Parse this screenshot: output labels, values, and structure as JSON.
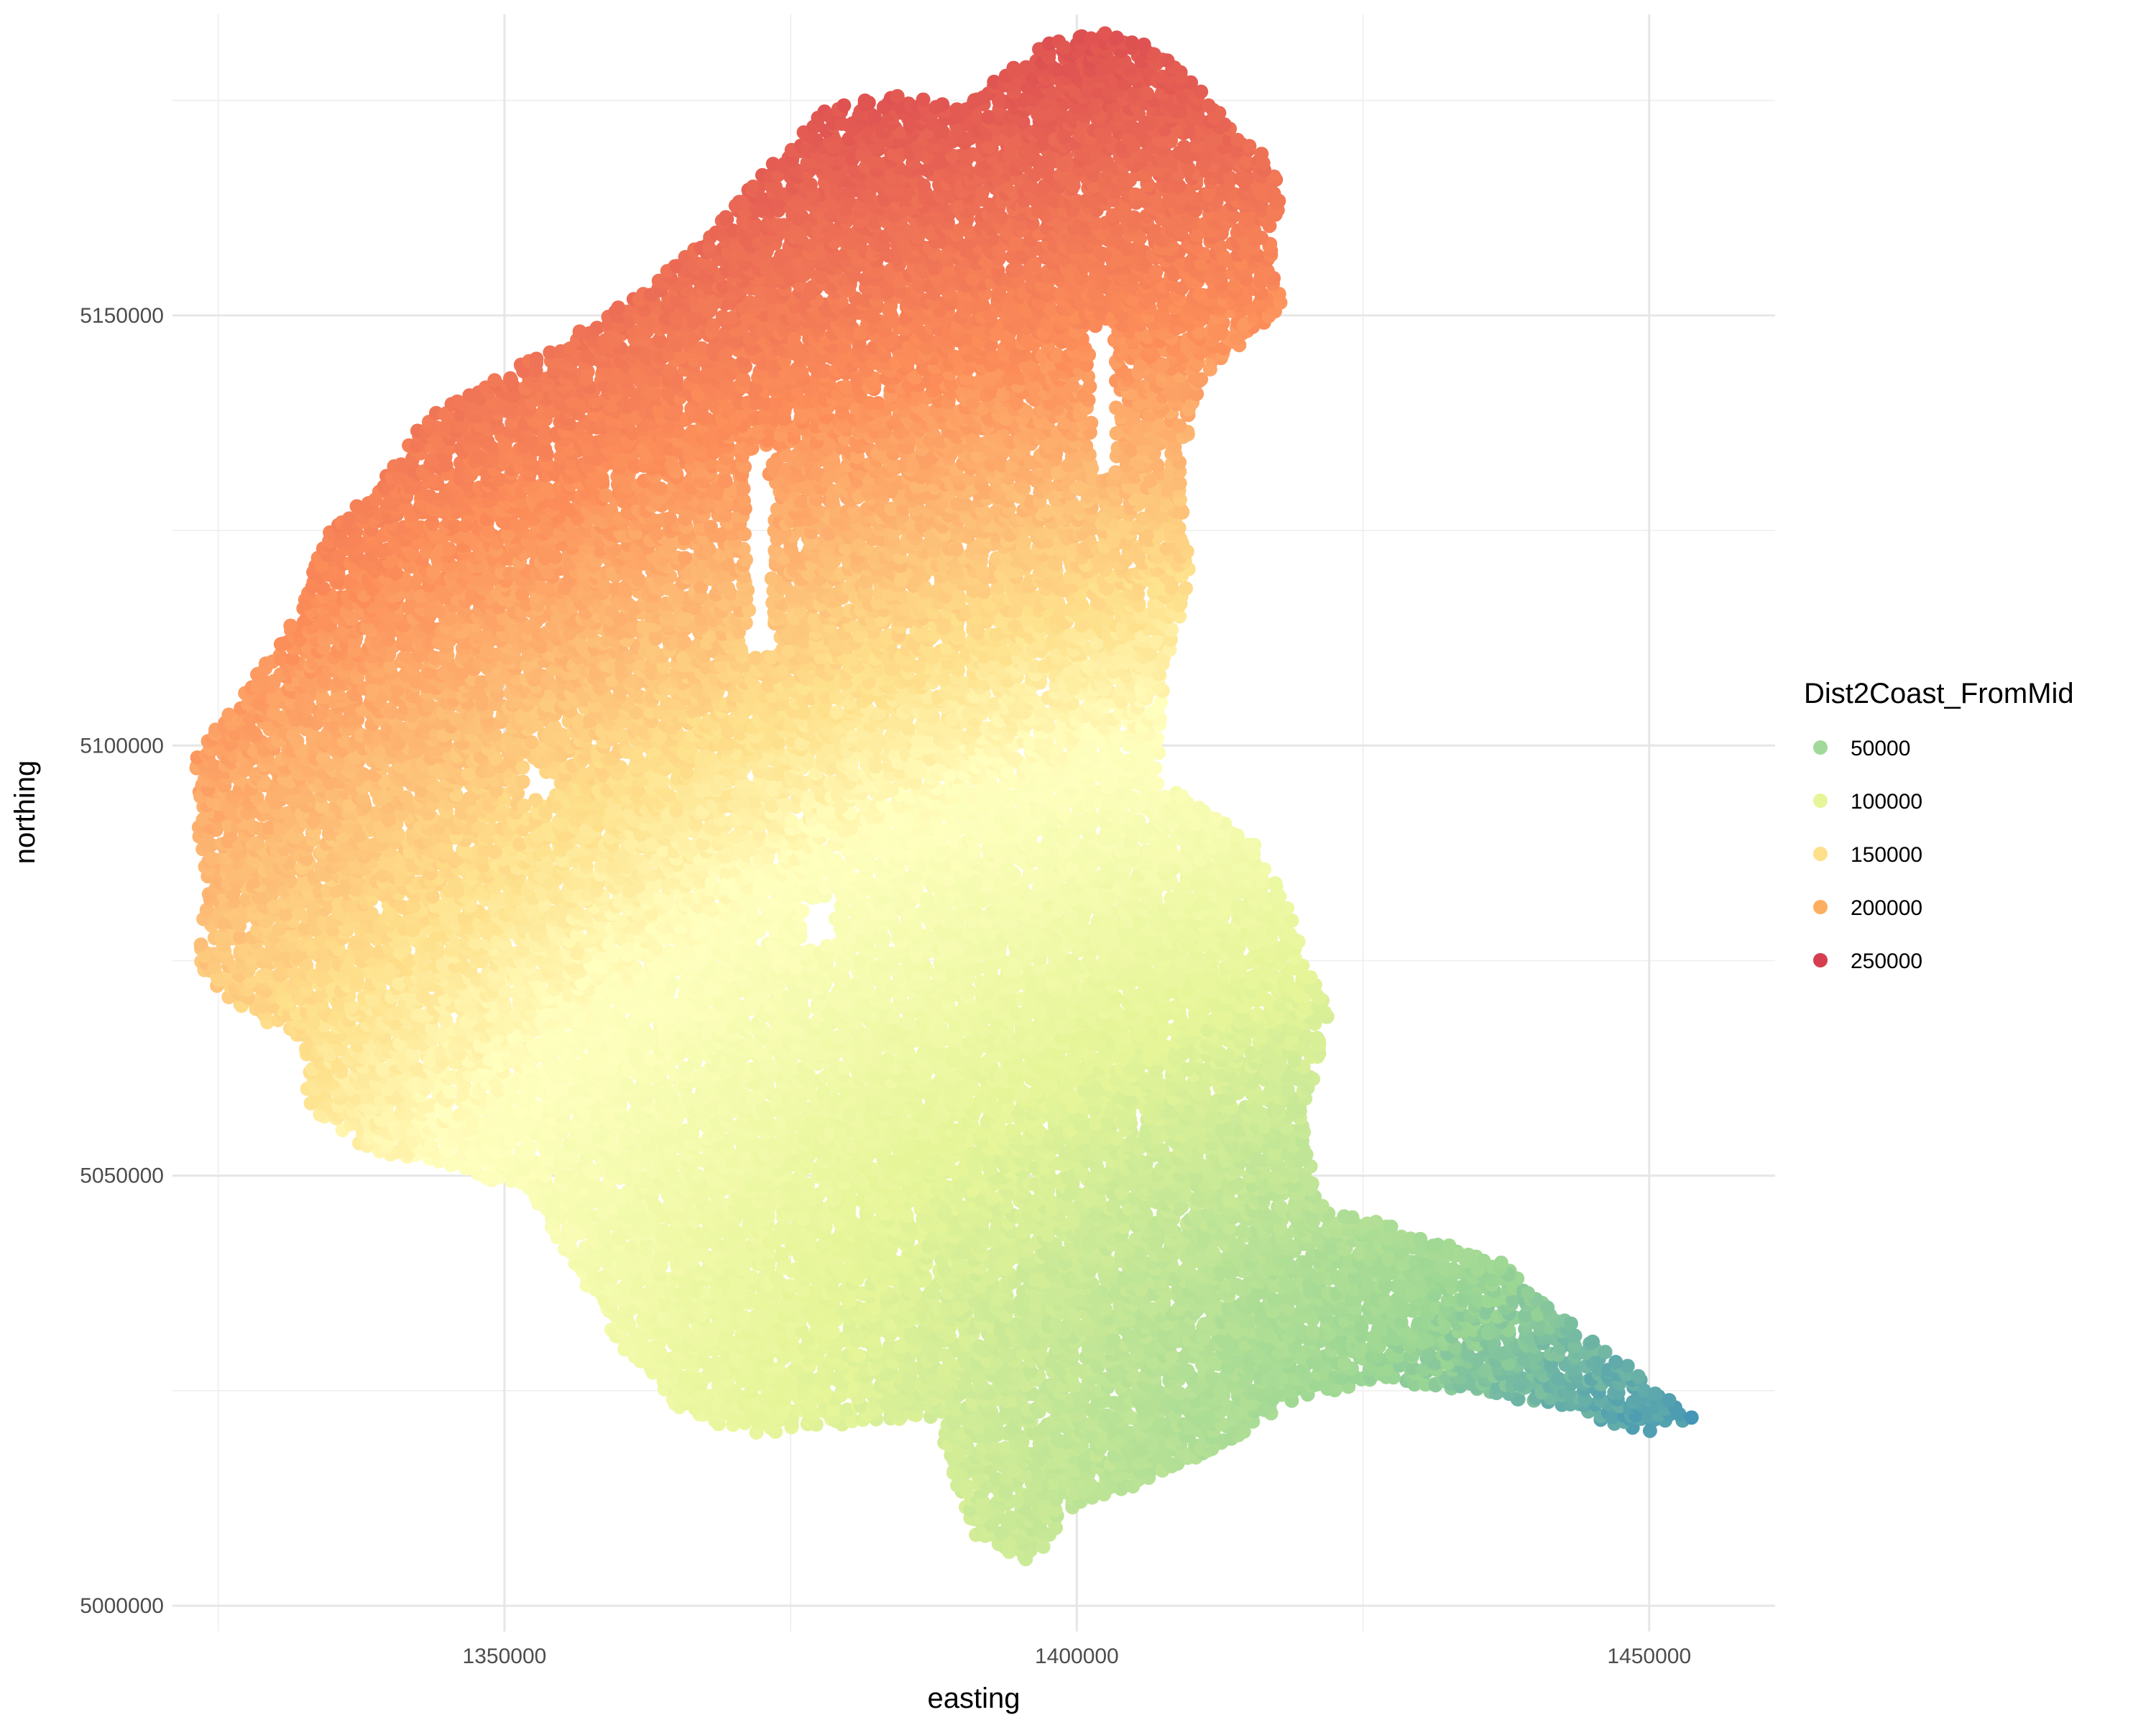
{
  "chart_data": {
    "type": "scatter",
    "title": "",
    "xlabel": "easting",
    "ylabel": "northing",
    "xlim": [
      1321000,
      1461000
    ],
    "ylim": [
      4997000,
      5185000
    ],
    "x_ticks": [
      1350000,
      1400000,
      1450000
    ],
    "y_ticks": [
      5000000,
      5050000,
      5100000,
      5150000
    ],
    "x_tick_labels": [
      "1350000",
      "1400000",
      "1450000"
    ],
    "y_tick_labels": [
      "5000000",
      "5050000",
      "5100000",
      "5150000"
    ],
    "grid": true,
    "legend": {
      "title": "Dist2Coast_FromMid",
      "placement": "right",
      "entries": [
        {
          "label": "50000",
          "value": 50000,
          "color": "#a1d99b"
        },
        {
          "label": "100000",
          "value": 100000,
          "color": "#e6f598"
        },
        {
          "label": "150000",
          "value": 150000,
          "color": "#fee08b"
        },
        {
          "label": "200000",
          "value": 200000,
          "color": "#fdae61"
        },
        {
          "label": "250000",
          "value": 250000,
          "color": "#d53e4f"
        }
      ]
    },
    "color_scale": {
      "variable": "Dist2Coast_FromMid",
      "stops": [
        {
          "value": 15000,
          "color": "#3288bd"
        },
        {
          "value": 50000,
          "color": "#99d594"
        },
        {
          "value": 100000,
          "color": "#e6f598"
        },
        {
          "value": 140000,
          "color": "#ffffbf"
        },
        {
          "value": 160000,
          "color": "#fee08b"
        },
        {
          "value": 200000,
          "color": "#fc8d59"
        },
        {
          "value": 260000,
          "color": "#d53e4f"
        }
      ]
    },
    "region_outline": [
      [
        1323000,
        5099000
      ],
      [
        1327000,
        5106000
      ],
      [
        1331000,
        5113000
      ],
      [
        1335000,
        5126000
      ],
      [
        1339000,
        5130000
      ],
      [
        1343000,
        5138000
      ],
      [
        1348000,
        5142000
      ],
      [
        1354000,
        5146000
      ],
      [
        1360000,
        5151000
      ],
      [
        1366000,
        5157000
      ],
      [
        1373000,
        5167000
      ],
      [
        1378000,
        5174000
      ],
      [
        1384000,
        5176000
      ],
      [
        1390000,
        5174000
      ],
      [
        1394000,
        5179000
      ],
      [
        1398000,
        5182000
      ],
      [
        1402000,
        5183000
      ],
      [
        1406000,
        5182000
      ],
      [
        1408000,
        5180000
      ],
      [
        1411000,
        5176000
      ],
      [
        1414000,
        5171000
      ],
      [
        1417000,
        5168000
      ],
      [
        1418000,
        5164000
      ],
      [
        1417000,
        5158000
      ],
      [
        1418000,
        5151000
      ],
      [
        1414000,
        5146000
      ],
      [
        1411000,
        5143000
      ],
      [
        1409000,
        5132000
      ],
      [
        1410000,
        5120000
      ],
      [
        1408000,
        5110000
      ],
      [
        1407000,
        5096000
      ],
      [
        1410000,
        5094000
      ],
      [
        1415000,
        5090000
      ],
      [
        1419000,
        5080000
      ],
      [
        1422000,
        5069000
      ],
      [
        1420000,
        5057000
      ],
      [
        1421000,
        5047000
      ],
      [
        1430000,
        5043000
      ],
      [
        1437000,
        5040000
      ],
      [
        1442000,
        5034000
      ],
      [
        1447000,
        5029000
      ],
      [
        1452000,
        5024000
      ],
      [
        1454000,
        5022000
      ],
      [
        1450000,
        5020000
      ],
      [
        1442000,
        5023000
      ],
      [
        1435000,
        5025000
      ],
      [
        1426000,
        5026000
      ],
      [
        1419000,
        5024000
      ],
      [
        1412000,
        5018000
      ],
      [
        1406000,
        5014000
      ],
      [
        1400000,
        5012000
      ],
      [
        1396000,
        5005000
      ],
      [
        1391000,
        5008000
      ],
      [
        1389000,
        5015000
      ],
      [
        1388000,
        5022000
      ],
      [
        1380000,
        5021000
      ],
      [
        1372000,
        5020000
      ],
      [
        1366000,
        5022000
      ],
      [
        1360000,
        5030000
      ],
      [
        1356000,
        5040000
      ],
      [
        1352000,
        5048000
      ],
      [
        1345000,
        5051000
      ],
      [
        1338000,
        5053000
      ],
      [
        1333000,
        5058000
      ],
      [
        1332000,
        5066000
      ],
      [
        1326000,
        5070000
      ],
      [
        1323000,
        5075000
      ],
      [
        1324000,
        5083000
      ],
      [
        1323000,
        5093000
      ]
    ],
    "holes": [
      [
        [
          1371000,
          5134000
        ],
        [
          1373000,
          5135000
        ],
        [
          1373500,
          5112000
        ],
        [
          1371500,
          5110000
        ]
      ],
      [
        [
          1401000,
          5148000
        ],
        [
          1403000,
          5149000
        ],
        [
          1403500,
          5132000
        ],
        [
          1401500,
          5131000
        ]
      ],
      [
        [
          1376000,
          5082000
        ],
        [
          1378500,
          5082500
        ],
        [
          1379000,
          5077000
        ],
        [
          1376500,
          5076500
        ]
      ],
      [
        [
          1352000,
          5098000
        ],
        [
          1354500,
          5096000
        ],
        [
          1353500,
          5093000
        ],
        [
          1351500,
          5095000
        ]
      ]
    ],
    "color_field": {
      "type": "radial",
      "origin": [
        1460000,
        5018000
      ],
      "value_at_origin": 15000,
      "scale_x": 0.75,
      "scale_y": 1.0,
      "multiplier": 1.35,
      "max_value": 260000
    }
  }
}
